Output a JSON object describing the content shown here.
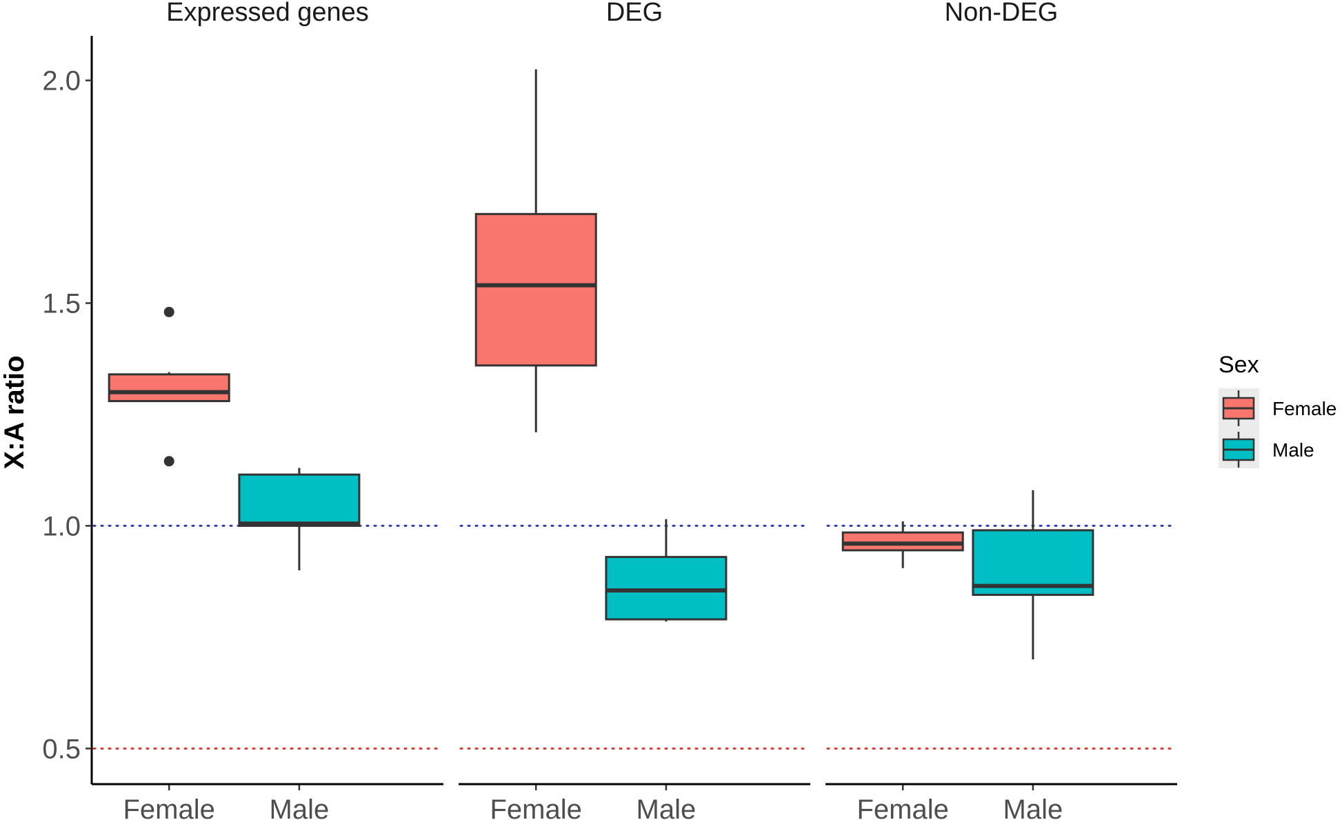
{
  "chart_data": {
    "type": "boxplot",
    "ylabel": "X:A ratio",
    "xlabel": "",
    "ylim": [
      0.42,
      2.1
    ],
    "yticks": [
      0.5,
      1.0,
      1.5,
      2.0
    ],
    "ytick_labels": [
      "0.5",
      "1.0",
      "1.5",
      "2.0"
    ],
    "reference_lines": [
      {
        "y": 1.0,
        "color": "#2d3fb0",
        "style": "dotted"
      },
      {
        "y": 0.5,
        "color": "#d43a2f",
        "style": "dotted"
      }
    ],
    "categories": [
      "Female",
      "Male"
    ],
    "legend": {
      "title": "Sex",
      "position": "right",
      "entries": [
        {
          "label": "Female",
          "color": "#F8766D"
        },
        {
          "label": "Male",
          "color": "#00BFC4"
        }
      ]
    },
    "panels": [
      {
        "title": "Expressed genes",
        "boxes": [
          {
            "category": "Female",
            "whisker_low": 1.28,
            "q1": 1.28,
            "median": 1.3,
            "q3": 1.34,
            "whisker_high": 1.345,
            "outliers": [
              1.48,
              1.145
            ]
          },
          {
            "category": "Male",
            "whisker_low": 0.9,
            "q1": 1.0,
            "median": 1.005,
            "q3": 1.115,
            "whisker_high": 1.13,
            "outliers": []
          }
        ]
      },
      {
        "title": "DEG",
        "boxes": [
          {
            "category": "Female",
            "whisker_low": 1.21,
            "q1": 1.36,
            "median": 1.54,
            "q3": 1.7,
            "whisker_high": 2.025,
            "outliers": []
          },
          {
            "category": "Male",
            "whisker_low": 0.785,
            "q1": 0.79,
            "median": 0.855,
            "q3": 0.93,
            "whisker_high": 1.015,
            "outliers": []
          }
        ]
      },
      {
        "title": "Non-DEG",
        "boxes": [
          {
            "category": "Female",
            "whisker_low": 0.905,
            "q1": 0.945,
            "median": 0.96,
            "q3": 0.985,
            "whisker_high": 1.01,
            "outliers": []
          },
          {
            "category": "Male",
            "whisker_low": 0.7,
            "q1": 0.845,
            "median": 0.865,
            "q3": 0.99,
            "whisker_high": 1.08,
            "outliers": []
          }
        ]
      }
    ]
  }
}
